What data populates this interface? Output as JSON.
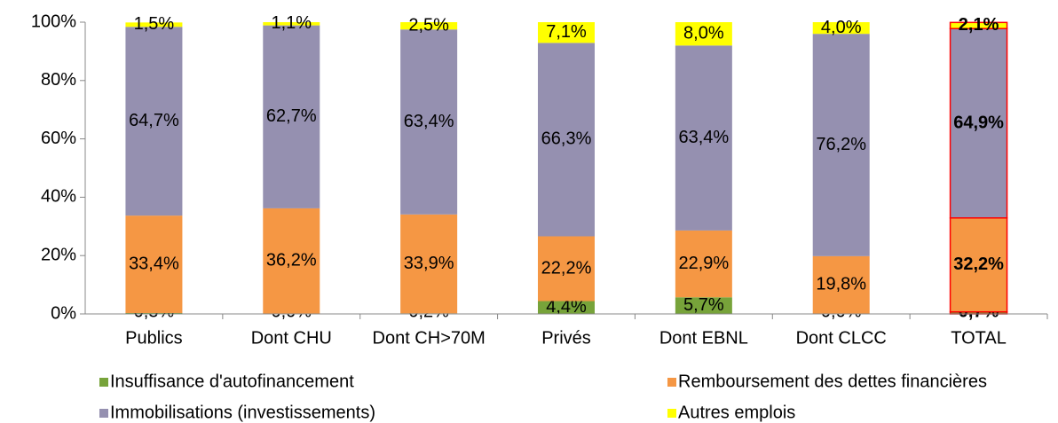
{
  "chart_data": {
    "type": "stacked_bar",
    "categories": [
      "Publics",
      "Dont CHU",
      "Dont CH>70M",
      "Privés",
      "Dont EBNL",
      "Dont CLCC",
      "TOTAL"
    ],
    "series": [
      {
        "name": "Insuffisance d'autofinancement",
        "color": "#77a33a",
        "values": [
          0.3,
          0.0,
          0.2,
          4.4,
          5.7,
          0.0,
          0.7
        ],
        "value_labels": [
          "0,3%",
          "0,0%",
          "0,2%",
          "4,4%",
          "5,7%",
          "0,0%",
          "0,7%"
        ]
      },
      {
        "name": "Remboursement des dettes financières",
        "color": "#f59744",
        "values": [
          33.4,
          36.2,
          33.9,
          22.2,
          22.9,
          19.8,
          32.2
        ],
        "value_labels": [
          "33,4%",
          "36,2%",
          "33,9%",
          "22,2%",
          "22,9%",
          "19,8%",
          "32,2%"
        ]
      },
      {
        "name": "Immobilisations (investissements)",
        "color": "#9590b0",
        "values": [
          64.7,
          62.7,
          63.4,
          66.3,
          63.4,
          76.2,
          64.9
        ],
        "value_labels": [
          "64,7%",
          "62,7%",
          "63,4%",
          "66,3%",
          "63,4%",
          "76,2%",
          "64,9%"
        ]
      },
      {
        "name": "Autres emplois",
        "color": "#ffff00",
        "values": [
          1.5,
          1.1,
          2.5,
          7.1,
          8.0,
          4.0,
          2.1
        ],
        "value_labels": [
          "1,5%",
          "1,1%",
          "2,5%",
          "7,1%",
          "8,0%",
          "4,0%",
          "2,1%"
        ]
      }
    ],
    "ylim": [
      0,
      100
    ],
    "yticks": [
      {
        "value": 0,
        "label": "0%"
      },
      {
        "value": 20,
        "label": "20%"
      },
      {
        "value": 40,
        "label": "40%"
      },
      {
        "value": 60,
        "label": "60%"
      },
      {
        "value": 80,
        "label": "80%"
      },
      {
        "value": 100,
        "label": "100%"
      }
    ],
    "highlight_index": 6,
    "highlight_color": "#ff0000",
    "legend": "bottom"
  }
}
